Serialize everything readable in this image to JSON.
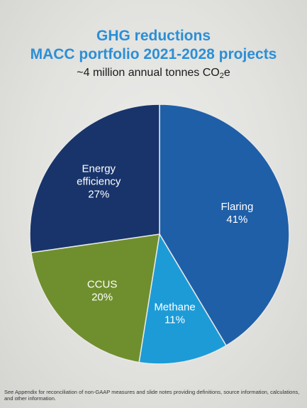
{
  "title_line1": "GHG reductions",
  "title_line2": "MACC portfolio 2021-2028 projects",
  "subtitle_prefix": "~4 million annual tonnes CO",
  "subtitle_sub": "2",
  "subtitle_suffix": "e",
  "footnote": "See Appendix for reconciliation of non-GAAP measures and slide notes providing definitions, source information, calculations, and other information.",
  "chart_data": {
    "type": "pie",
    "title": "",
    "slices": [
      {
        "label": "Flaring",
        "value": 41,
        "display": "41%",
        "color": "#1f5fa8"
      },
      {
        "label": "Methane",
        "value": 11,
        "display": "11%",
        "color": "#1d9bd7"
      },
      {
        "label": "CCUS",
        "value": 20,
        "display": "20%",
        "color": "#6f8f2e"
      },
      {
        "label": "Energy efficiency",
        "value": 27,
        "display": "27%",
        "color": "#18346b"
      }
    ]
  }
}
